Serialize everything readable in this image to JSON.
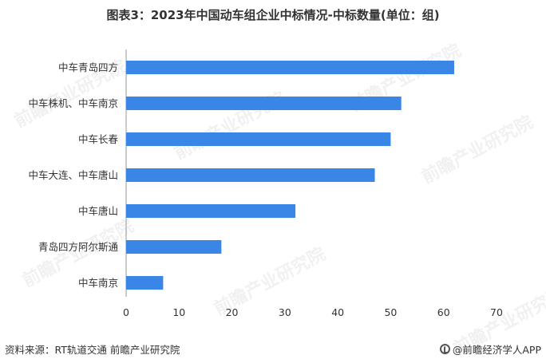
{
  "title": "图表3：2023年中国动车组企业中标情况-中标数量(单位：组)",
  "source": "资料来源：RT轨道交通 前瞻产业研究院",
  "brand": "@前瞻经济学人APP",
  "watermark": "前瞻产业研究院",
  "colors": {
    "bar": "#3a86e6",
    "axis": "#999999",
    "text": "#333333"
  },
  "chart_data": {
    "type": "bar",
    "orientation": "horizontal",
    "categories": [
      "中车青岛四方",
      "中车株机、中车南京",
      "中车长春",
      "中车大连、中车唐山",
      "中车唐山",
      "青岛四方阿尔斯通",
      "中车南京"
    ],
    "values": [
      62,
      52,
      50,
      47,
      32,
      18,
      7
    ],
    "xlim": [
      0,
      70
    ],
    "xticks": [
      0,
      10,
      20,
      30,
      40,
      50,
      60,
      70
    ],
    "grid": false
  }
}
